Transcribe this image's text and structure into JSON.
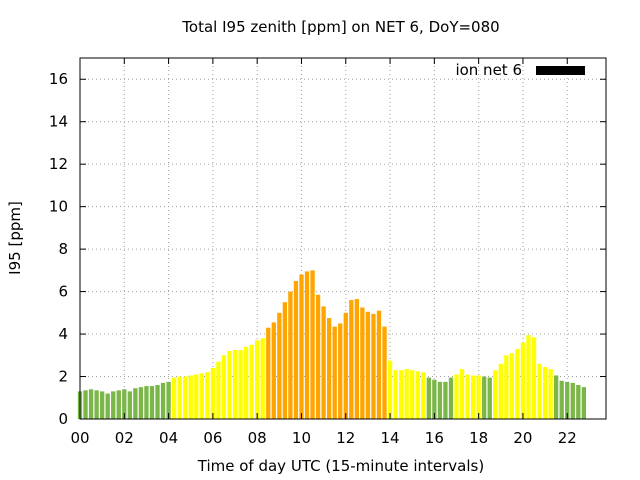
{
  "chart_data": {
    "type": "bar",
    "title": "Total I95 zenith [ppm] on NET 6, DoY=080",
    "xlabel": "Time of day UTC (15-minute intervals)",
    "ylabel": "I95 [ppm]",
    "ylim": [
      0,
      17
    ],
    "xlim": [
      0,
      23.75
    ],
    "yticks": [
      "0",
      "2",
      "4",
      "6",
      "8",
      "10",
      "12",
      "14",
      "16"
    ],
    "xticks": [
      "00",
      "02",
      "04",
      "06",
      "08",
      "10",
      "12",
      "14",
      "16",
      "18",
      "20",
      "22"
    ],
    "grid": true,
    "legend": {
      "label": "ion net 6",
      "position": "top-right",
      "color": "#000000"
    },
    "colors": {
      "low": "#7ab648",
      "mid": "#ffff00",
      "high": "#ffa500"
    },
    "x_step_hours": 0.25,
    "values": [
      1.3,
      1.35,
      1.4,
      1.35,
      1.3,
      1.2,
      1.3,
      1.35,
      1.4,
      1.3,
      1.45,
      1.5,
      1.55,
      1.55,
      1.6,
      1.7,
      1.75,
      1.95,
      2.0,
      2.0,
      2.05,
      2.1,
      2.15,
      2.2,
      2.4,
      2.7,
      3.0,
      3.2,
      3.25,
      3.25,
      3.4,
      3.5,
      3.7,
      3.8,
      4.3,
      4.55,
      5.0,
      5.5,
      6.0,
      6.5,
      6.8,
      6.95,
      7.0,
      5.85,
      5.3,
      4.75,
      4.35,
      4.5,
      5.0,
      5.6,
      5.65,
      5.25,
      5.05,
      4.95,
      5.1,
      4.35,
      2.75,
      2.3,
      2.3,
      2.35,
      2.3,
      2.25,
      2.2,
      1.95,
      1.85,
      1.75,
      1.75,
      1.95,
      2.1,
      2.35,
      2.1,
      2.05,
      2.05,
      2.0,
      1.95,
      2.3,
      2.6,
      3.0,
      3.1,
      3.3,
      3.6,
      3.95,
      3.85,
      2.6,
      2.45,
      2.35,
      2.05,
      1.8,
      1.75,
      1.7,
      1.6,
      1.5
    ],
    "categories_color": [
      "low",
      "low",
      "low",
      "low",
      "low",
      "low",
      "low",
      "low",
      "low",
      "low",
      "low",
      "low",
      "low",
      "low",
      "low",
      "low",
      "low",
      "mid",
      "mid",
      "mid",
      "mid",
      "mid",
      "mid",
      "mid",
      "mid",
      "mid",
      "mid",
      "mid",
      "mid",
      "mid",
      "mid",
      "mid",
      "mid",
      "mid",
      "high",
      "high",
      "high",
      "high",
      "high",
      "high",
      "high",
      "high",
      "high",
      "high",
      "high",
      "high",
      "high",
      "high",
      "high",
      "high",
      "high",
      "high",
      "high",
      "high",
      "high",
      "high",
      "mid",
      "mid",
      "mid",
      "mid",
      "mid",
      "mid",
      "mid",
      "low",
      "low",
      "low",
      "low",
      "low",
      "mid",
      "mid",
      "mid",
      "mid",
      "mid",
      "low",
      "low",
      "mid",
      "mid",
      "mid",
      "mid",
      "mid",
      "mid",
      "mid",
      "mid",
      "mid",
      "mid",
      "mid",
      "low",
      "low",
      "low",
      "low",
      "low",
      "low"
    ]
  }
}
